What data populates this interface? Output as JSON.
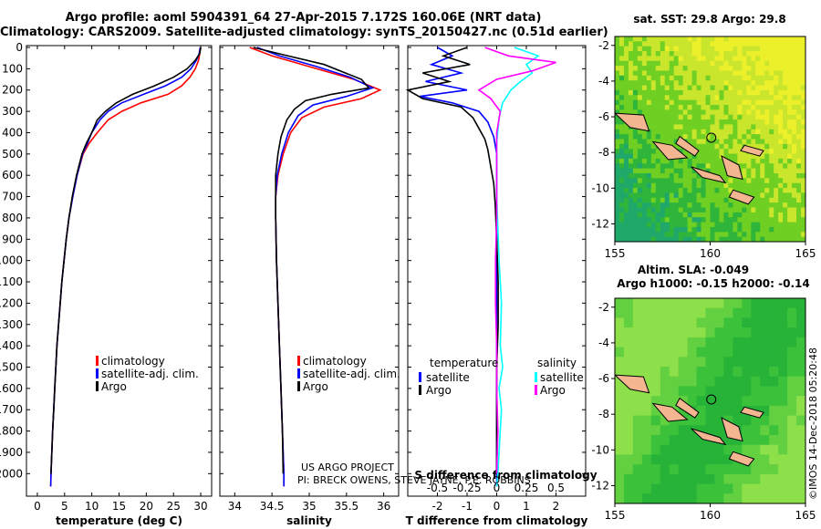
{
  "header": {
    "line1": "Argo profile: aoml 5904391_64 27-Apr-2015 7.172S 160.06E (NRT data)",
    "line2": "Climatology: CARS2009. Satellite-adjusted climatology: synTS_20150427.nc (0.51d earlier)"
  },
  "colors": {
    "climatology": "#ff0000",
    "satellite": "#0000ff",
    "argo": "#000000",
    "sat_salinity": "#00ffff",
    "clim_salinity_diff": "#ff00ff"
  },
  "credits": {
    "project": "US ARGO PROJECT",
    "pi": "PI: BRECK OWENS, STEVE JAYNE, P.E. ROBBINS",
    "imos": "©IMOS 14-Dec-2018 05:20:48"
  },
  "chart_data": [
    {
      "type": "line",
      "name": "temperature",
      "xlabel": "temperature (deg C)",
      "ylabel": "",
      "xlim": [
        -2,
        32
      ],
      "ylim": [
        2080,
        0
      ],
      "xticks": [
        0,
        5,
        10,
        15,
        20,
        25,
        30
      ],
      "yticks": [
        0,
        100,
        200,
        300,
        400,
        500,
        600,
        700,
        800,
        900,
        1000,
        1100,
        1200,
        1300,
        1400,
        1500,
        1600,
        1700,
        1800,
        1900,
        2000
      ],
      "legend": [
        "climatology",
        "satellite-adj. clim.",
        "Argo"
      ],
      "series": [
        {
          "name": "climatology",
          "color": "#ff0000",
          "points": [
            [
              29.9,
              0
            ],
            [
              29.8,
              30
            ],
            [
              29.6,
              60
            ],
            [
              29.0,
              100
            ],
            [
              28.0,
              140
            ],
            [
              26.5,
              180
            ],
            [
              24.0,
              220
            ],
            [
              19.0,
              260
            ],
            [
              15.5,
              300
            ],
            [
              13.0,
              340
            ],
            [
              11.0,
              400
            ],
            [
              9.5,
              450
            ],
            [
              8.4,
              500
            ],
            [
              7.3,
              600
            ],
            [
              6.5,
              700
            ],
            [
              5.8,
              800
            ],
            [
              5.3,
              900
            ],
            [
              4.9,
              1000
            ],
            [
              4.5,
              1100
            ],
            [
              4.2,
              1200
            ],
            [
              3.9,
              1300
            ],
            [
              3.6,
              1400
            ],
            [
              3.4,
              1500
            ],
            [
              3.2,
              1600
            ],
            [
              3.0,
              1700
            ],
            [
              2.8,
              1800
            ],
            [
              2.65,
              1900
            ],
            [
              2.5,
              2000
            ],
            [
              2.45,
              2060
            ]
          ]
        },
        {
          "name": "satellite-adj. clim.",
          "color": "#0000ff",
          "points": [
            [
              29.9,
              0
            ],
            [
              29.7,
              30
            ],
            [
              29.2,
              60
            ],
            [
              28.2,
              100
            ],
            [
              26.5,
              140
            ],
            [
              23.5,
              180
            ],
            [
              19.5,
              220
            ],
            [
              15.5,
              260
            ],
            [
              13.0,
              300
            ],
            [
              11.5,
              340
            ],
            [
              10.0,
              400
            ],
            [
              9.2,
              450
            ],
            [
              8.3,
              500
            ],
            [
              7.3,
              600
            ],
            [
              6.5,
              700
            ],
            [
              5.8,
              800
            ],
            [
              5.3,
              900
            ],
            [
              4.9,
              1000
            ],
            [
              4.5,
              1100
            ],
            [
              4.2,
              1200
            ],
            [
              3.9,
              1300
            ],
            [
              3.6,
              1400
            ],
            [
              3.4,
              1500
            ],
            [
              3.2,
              1600
            ],
            [
              3.0,
              1700
            ],
            [
              2.8,
              1800
            ],
            [
              2.65,
              1900
            ],
            [
              2.5,
              2000
            ],
            [
              2.45,
              2060
            ]
          ]
        },
        {
          "name": "Argo",
          "color": "#000000",
          "points": [
            [
              30.0,
              0
            ],
            [
              29.8,
              30
            ],
            [
              29.0,
              60
            ],
            [
              27.5,
              100
            ],
            [
              25.0,
              140
            ],
            [
              21.5,
              180
            ],
            [
              17.5,
              220
            ],
            [
              14.5,
              260
            ],
            [
              12.5,
              300
            ],
            [
              11.0,
              340
            ],
            [
              10.0,
              400
            ],
            [
              9.0,
              450
            ],
            [
              8.2,
              500
            ],
            [
              7.2,
              600
            ],
            [
              6.4,
              700
            ],
            [
              5.8,
              800
            ],
            [
              5.3,
              900
            ],
            [
              4.9,
              1000
            ],
            [
              4.5,
              1100
            ],
            [
              4.2,
              1200
            ],
            [
              3.9,
              1300
            ],
            [
              3.6,
              1400
            ],
            [
              3.4,
              1500
            ],
            [
              3.2,
              1600
            ],
            [
              3.0,
              1700
            ],
            [
              2.8,
              1800
            ],
            [
              2.65,
              1900
            ],
            [
              2.5,
              2000
            ]
          ]
        }
      ]
    },
    {
      "type": "line",
      "name": "salinity",
      "xlabel": "salinity",
      "ylabel": "",
      "xlim": [
        33.8,
        36.2
      ],
      "ylim": [
        2080,
        0
      ],
      "xticks": [
        34,
        34.5,
        35,
        35.5,
        36
      ],
      "legend": [
        "climatology",
        "satellite-adj. clim.",
        "Argo"
      ],
      "series": [
        {
          "name": "climatology",
          "color": "#ff0000",
          "points": [
            [
              34.2,
              0
            ],
            [
              34.5,
              40
            ],
            [
              35.0,
              90
            ],
            [
              35.6,
              150
            ],
            [
              35.95,
              200
            ],
            [
              35.7,
              240
            ],
            [
              35.2,
              280
            ],
            [
              34.9,
              330
            ],
            [
              34.75,
              400
            ],
            [
              34.65,
              500
            ],
            [
              34.58,
              600
            ],
            [
              34.55,
              700
            ],
            [
              34.55,
              800
            ],
            [
              34.56,
              1000
            ],
            [
              34.58,
              1200
            ],
            [
              34.6,
              1400
            ],
            [
              34.62,
              1600
            ],
            [
              34.64,
              1800
            ],
            [
              34.66,
              2000
            ],
            [
              34.66,
              2060
            ]
          ]
        },
        {
          "name": "satellite-adj. clim.",
          "color": "#0000ff",
          "points": [
            [
              34.3,
              0
            ],
            [
              34.6,
              40
            ],
            [
              35.1,
              90
            ],
            [
              35.55,
              140
            ],
            [
              35.85,
              190
            ],
            [
              35.5,
              230
            ],
            [
              35.05,
              270
            ],
            [
              34.85,
              320
            ],
            [
              34.72,
              400
            ],
            [
              34.63,
              500
            ],
            [
              34.57,
              600
            ],
            [
              34.55,
              700
            ],
            [
              34.55,
              800
            ],
            [
              34.56,
              1000
            ],
            [
              34.58,
              1200
            ],
            [
              34.6,
              1400
            ],
            [
              34.62,
              1600
            ],
            [
              34.64,
              1800
            ],
            [
              34.66,
              2000
            ],
            [
              34.66,
              2060
            ]
          ]
        },
        {
          "name": "Argo",
          "color": "#000000",
          "points": [
            [
              34.25,
              0
            ],
            [
              34.6,
              30
            ],
            [
              35.2,
              80
            ],
            [
              35.7,
              150
            ],
            [
              35.8,
              190
            ],
            [
              35.3,
              220
            ],
            [
              34.95,
              250
            ],
            [
              34.8,
              290
            ],
            [
              34.7,
              340
            ],
            [
              34.62,
              420
            ],
            [
              34.58,
              500
            ],
            [
              34.55,
              600
            ],
            [
              34.55,
              700
            ],
            [
              34.55,
              800
            ],
            [
              34.56,
              1000
            ],
            [
              34.58,
              1200
            ],
            [
              34.6,
              1400
            ],
            [
              34.62,
              1600
            ],
            [
              34.64,
              1800
            ],
            [
              34.65,
              2000
            ]
          ]
        }
      ]
    },
    {
      "type": "line",
      "name": "difference",
      "xlabel": "T difference from climatology",
      "xlabel_top": "S difference from climatology",
      "xlim": [
        -3,
        3
      ],
      "x2lim": [
        -0.75,
        0.75
      ],
      "ylim": [
        2080,
        0
      ],
      "xticks": [
        -2,
        -1,
        0,
        1,
        2
      ],
      "x2ticks": [
        -0.5,
        -0.25,
        0,
        0.25,
        0.5
      ],
      "legend": {
        "temperature": [
          "satellite",
          "Argo"
        ],
        "salinity": [
          "satellite",
          "Argo"
        ]
      },
      "series": [
        {
          "name": "T satellite",
          "color": "#0000ff",
          "axis": "T",
          "points": [
            [
              -2.0,
              0
            ],
            [
              -1.5,
              40
            ],
            [
              -2.2,
              80
            ],
            [
              -1.2,
              120
            ],
            [
              -2.4,
              160
            ],
            [
              -1.0,
              200
            ],
            [
              -2.6,
              230
            ],
            [
              -1.5,
              260
            ],
            [
              -0.6,
              300
            ],
            [
              -0.3,
              350
            ],
            [
              -0.1,
              420
            ],
            [
              0,
              500
            ],
            [
              0,
              700
            ],
            [
              0,
              1000
            ],
            [
              0,
              1500
            ],
            [
              0,
              2060
            ]
          ]
        },
        {
          "name": "T Argo",
          "color": "#000000",
          "axis": "T",
          "points": [
            [
              -1.0,
              0
            ],
            [
              -1.8,
              40
            ],
            [
              -0.9,
              80
            ],
            [
              -2.5,
              120
            ],
            [
              -1.6,
              160
            ],
            [
              -3.0,
              200
            ],
            [
              -2.5,
              240
            ],
            [
              -1.2,
              280
            ],
            [
              -0.8,
              330
            ],
            [
              -0.6,
              380
            ],
            [
              -0.4,
              430
            ],
            [
              -0.3,
              480
            ],
            [
              -0.2,
              560
            ],
            [
              -0.1,
              640
            ],
            [
              -0.05,
              740
            ],
            [
              0,
              900
            ],
            [
              0.05,
              1100
            ],
            [
              0.05,
              1300
            ],
            [
              0,
              1500
            ],
            [
              0,
              2000
            ]
          ]
        },
        {
          "name": "S satellite",
          "color": "#00ffff",
          "axis": "S",
          "points": [
            [
              0.15,
              0
            ],
            [
              0.35,
              40
            ],
            [
              0.25,
              80
            ],
            [
              0.3,
              120
            ],
            [
              0.2,
              160
            ],
            [
              0.12,
              200
            ],
            [
              0.05,
              260
            ],
            [
              0.02,
              330
            ],
            [
              0.0,
              450
            ],
            [
              0.0,
              700
            ],
            [
              0.02,
              1000
            ],
            [
              0.04,
              1200
            ],
            [
              0.03,
              1400
            ],
            [
              0.05,
              1500
            ],
            [
              0.02,
              1600
            ],
            [
              0.04,
              1700
            ],
            [
              0.03,
              1800
            ],
            [
              0.01,
              2000
            ],
            [
              0.0,
              2060
            ]
          ]
        },
        {
          "name": "S Argo",
          "color": "#ff00ff",
          "axis": "S",
          "points": [
            [
              -0.1,
              0
            ],
            [
              0.1,
              40
            ],
            [
              0.5,
              70
            ],
            [
              0.3,
              110
            ],
            [
              0.0,
              150
            ],
            [
              -0.15,
              200
            ],
            [
              -0.05,
              240
            ],
            [
              0.03,
              300
            ],
            [
              0.0,
              400
            ],
            [
              0.0,
              600
            ],
            [
              0.0,
              800
            ],
            [
              -0.01,
              1000
            ],
            [
              -0.01,
              1200
            ],
            [
              0.0,
              1400
            ],
            [
              0.0,
              1600
            ],
            [
              0.01,
              1800
            ],
            [
              0.0,
              2000
            ]
          ]
        }
      ]
    }
  ],
  "maps": [
    {
      "title": "sat. SST: 29.8 Argo: 29.8",
      "type": "heatmap",
      "field": "sst",
      "xlim": [
        155,
        165
      ],
      "ylim": [
        -13,
        -1.5
      ],
      "xticks": [
        155,
        160,
        165
      ],
      "yticks": [
        -2,
        -4,
        -6,
        -8,
        -10,
        -12
      ],
      "profile_location": [
        160.06,
        -7.172
      ]
    },
    {
      "title": "Altim. SLA: -0.049",
      "title2": "Argo h1000: -0.15 h2000: -0.14",
      "type": "heatmap",
      "field": "sla",
      "xlim": [
        155,
        165
      ],
      "ylim": [
        -13,
        -1.5
      ],
      "xticks": [
        155,
        160,
        165
      ],
      "yticks": [
        -2,
        -4,
        -6,
        -8,
        -10,
        -12
      ],
      "profile_location": [
        160.06,
        -7.172
      ]
    }
  ]
}
